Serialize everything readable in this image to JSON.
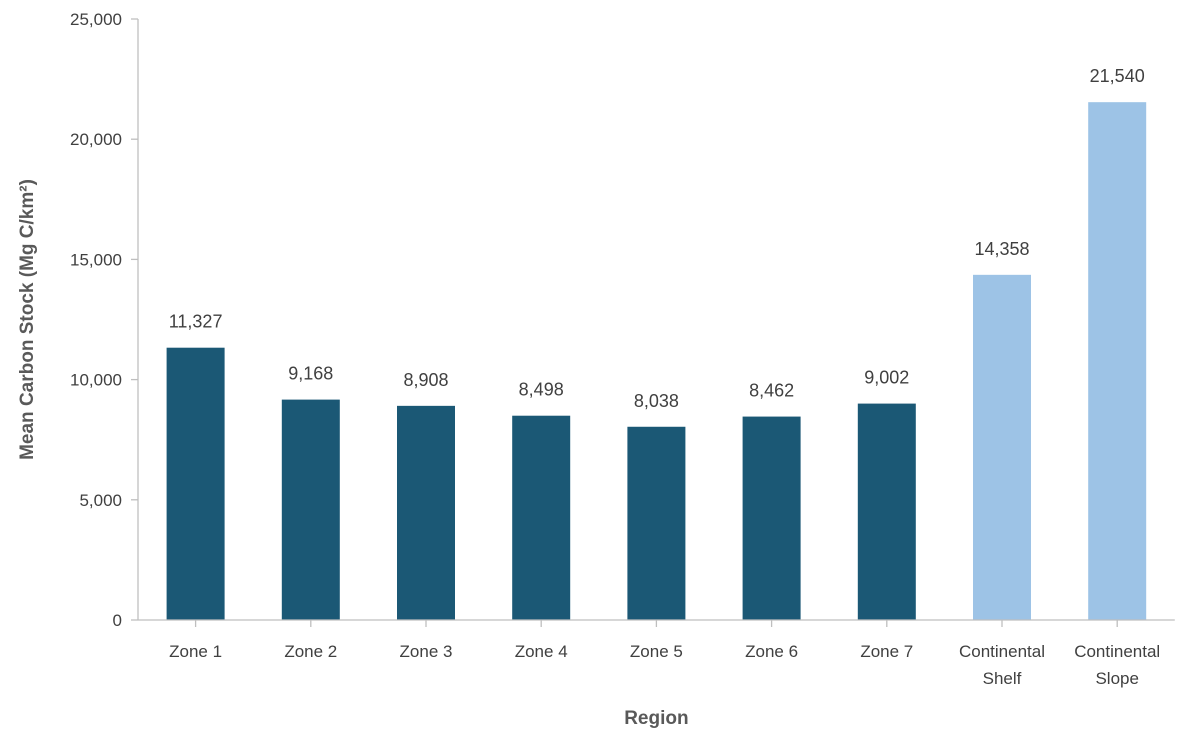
{
  "chart_data": {
    "type": "bar",
    "categories": [
      "Zone 1",
      "Zone 2",
      "Zone 3",
      "Zone 4",
      "Zone 5",
      "Zone 6",
      "Zone 7",
      "Continental\nShelf",
      "Continental\nSlope"
    ],
    "values": [
      11327,
      9168,
      8908,
      8498,
      8038,
      8462,
      9002,
      14358,
      21540
    ],
    "data_labels": [
      "11,327",
      "9,168",
      "8,908",
      "8,498",
      "8,038",
      "8,462",
      "9,002",
      "14,358",
      "21,540"
    ],
    "bar_colors": [
      "#1b5875",
      "#1b5875",
      "#1b5875",
      "#1b5875",
      "#1b5875",
      "#1b5875",
      "#1b5875",
      "#9dc3e6",
      "#9dc3e6"
    ],
    "title": "",
    "xlabel": "Region",
    "ylabel": "Mean Carbon Stock  (Mg C/km²)",
    "ylim": [
      0,
      25000
    ],
    "yticks": [
      0,
      5000,
      10000,
      15000,
      20000,
      25000
    ],
    "ytick_labels": [
      "0",
      "5,000",
      "10,000",
      "15,000",
      "20,000",
      "25,000"
    ],
    "grid": false,
    "legend": "none"
  }
}
